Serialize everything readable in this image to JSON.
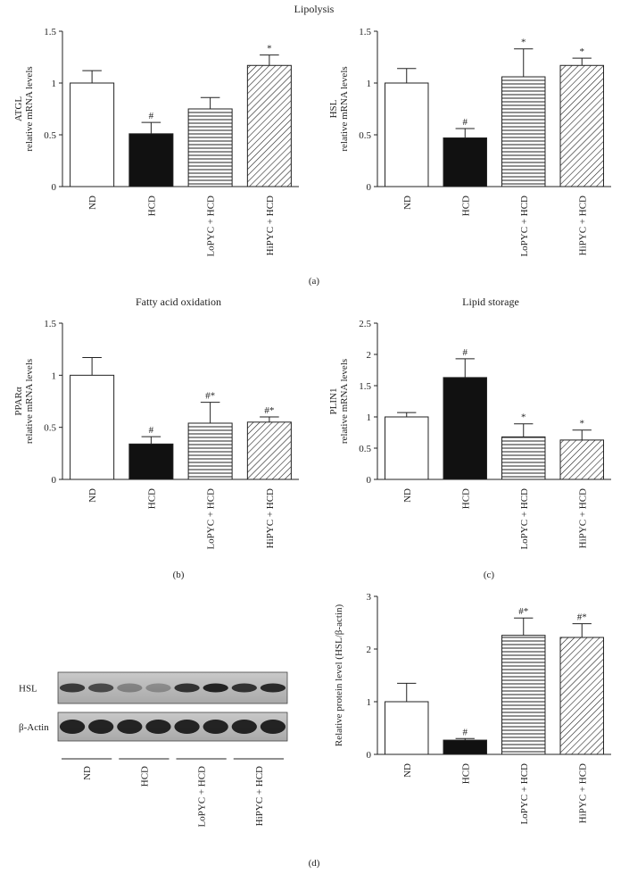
{
  "headers": {
    "lipolysis": "Lipolysis"
  },
  "panel_labels": [
    "(a)",
    "(b)",
    "(c)",
    "(d)"
  ],
  "blot": {
    "rows": [
      "HSL",
      "β-Actin"
    ],
    "groups": [
      "ND",
      "HCD",
      "LoPYC + HCD",
      "HiPYC + HCD"
    ]
  },
  "chart_data": [
    {
      "type": "bar",
      "ylabel": [
        "ATGL",
        "relative mRNA levels"
      ],
      "categories": [
        "ND",
        "HCD",
        "LoPYC + HCD",
        "HiPYC + HCD"
      ],
      "values": [
        1.0,
        0.51,
        0.75,
        1.17
      ],
      "errors": [
        0.12,
        0.11,
        0.11,
        0.1
      ],
      "annotations": [
        null,
        "#",
        null,
        "*"
      ],
      "fills": [
        "white",
        "black",
        "hlines",
        "hatch"
      ],
      "ylim": [
        0,
        1.5
      ],
      "yticks": [
        0,
        0.5,
        1,
        1.5
      ]
    },
    {
      "type": "bar",
      "ylabel": [
        "HSL",
        "relative mRNA levels"
      ],
      "categories": [
        "ND",
        "HCD",
        "LoPYC + HCD",
        "HiPYC + HCD"
      ],
      "values": [
        1.0,
        0.47,
        1.06,
        1.17
      ],
      "errors": [
        0.14,
        0.09,
        0.27,
        0.07
      ],
      "annotations": [
        null,
        "#",
        "*",
        "*"
      ],
      "fills": [
        "white",
        "black",
        "hlines",
        "hatch"
      ],
      "ylim": [
        0,
        1.5
      ],
      "yticks": [
        0,
        0.5,
        1,
        1.5
      ]
    },
    {
      "type": "bar",
      "title": "Fatty acid oxidation",
      "ylabel": [
        "PPARα",
        "relative mRNA levels"
      ],
      "categories": [
        "ND",
        "HCD",
        "LoPYC + HCD",
        "HiPYC + HCD"
      ],
      "values": [
        1.0,
        0.34,
        0.54,
        0.55
      ],
      "errors": [
        0.17,
        0.07,
        0.2,
        0.05
      ],
      "annotations": [
        null,
        "#",
        "#*",
        "#*"
      ],
      "fills": [
        "white",
        "black",
        "hlines",
        "hatch"
      ],
      "ylim": [
        0,
        1.5
      ],
      "yticks": [
        0,
        0.5,
        1,
        1.5
      ]
    },
    {
      "type": "bar",
      "title": "Lipid storage",
      "ylabel": [
        "PLIN1",
        "relative mRNA levels"
      ],
      "categories": [
        "ND",
        "HCD",
        "LoPYC + HCD",
        "HiPYC + HCD"
      ],
      "values": [
        1.0,
        1.63,
        0.68,
        0.63
      ],
      "errors": [
        0.07,
        0.3,
        0.21,
        0.16
      ],
      "annotations": [
        null,
        "#",
        "*",
        "*"
      ],
      "fills": [
        "white",
        "black",
        "hlines",
        "hatch"
      ],
      "ylim": [
        0,
        2.5
      ],
      "yticks": [
        0,
        0.5,
        1,
        1.5,
        2,
        2.5
      ]
    },
    {
      "type": "bar",
      "ylabel": [
        "Relative protein level (HSL/β-actin)"
      ],
      "categories": [
        "ND",
        "HCD",
        "LoPYC + HCD",
        "HiPYC + HCD"
      ],
      "values": [
        1.0,
        0.27,
        2.26,
        2.22
      ],
      "errors": [
        0.35,
        0.03,
        0.33,
        0.26
      ],
      "annotations": [
        null,
        "#",
        "#*",
        "#*"
      ],
      "fills": [
        "white",
        "black",
        "hlines",
        "hatch"
      ],
      "ylim": [
        0,
        3
      ],
      "yticks": [
        0,
        1,
        2,
        3
      ]
    }
  ]
}
